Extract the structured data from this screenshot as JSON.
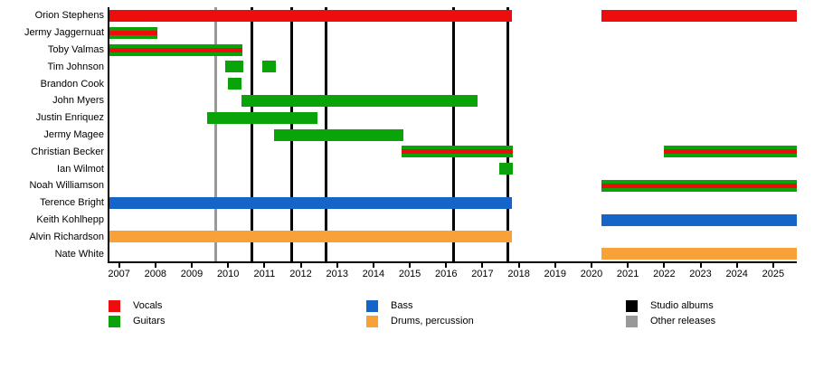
{
  "chart_data": {
    "type": "timeline",
    "x_range": [
      2006.71,
      2025.65
    ],
    "x_ticks": [
      2007,
      2008,
      2009,
      2010,
      2011,
      2012,
      2013,
      2014,
      2015,
      2016,
      2017,
      2018,
      2019,
      2020,
      2021,
      2022,
      2023,
      2024,
      2025
    ],
    "members": [
      {
        "name": "Orion Stephens",
        "role": "vocals",
        "segments": [
          [
            2006.71,
            2017.81
          ],
          [
            2020.27,
            2025.65
          ]
        ]
      },
      {
        "name": "Jermy Jaggernuat",
        "role": "guitars",
        "stripe": "vocals",
        "segments": [
          [
            2006.71,
            2008.05
          ]
        ]
      },
      {
        "name": "Toby Valmas",
        "role": "guitars",
        "stripe": "vocals",
        "segments": [
          [
            2006.71,
            2010.4
          ]
        ]
      },
      {
        "name": "Tim Johnson",
        "role": "guitars",
        "segments": [
          [
            2009.93,
            2010.42
          ],
          [
            2010.94,
            2011.31
          ]
        ]
      },
      {
        "name": "Brandon Cook",
        "role": "guitars",
        "segments": [
          [
            2009.99,
            2010.38
          ]
        ]
      },
      {
        "name": "John Myers",
        "role": "guitars",
        "segments": [
          [
            2010.36,
            2016.87
          ]
        ]
      },
      {
        "name": "Justin Enriquez",
        "role": "guitars",
        "segments": [
          [
            2009.43,
            2012.47
          ]
        ]
      },
      {
        "name": "Jermy Magee",
        "role": "guitars",
        "segments": [
          [
            2011.27,
            2014.82
          ]
        ]
      },
      {
        "name": "Christian Becker",
        "role": "guitars",
        "stripe": "vocals",
        "segments": [
          [
            2014.77,
            2017.84
          ],
          [
            2021.99,
            2025.65
          ]
        ]
      },
      {
        "name": "Ian Wilmot",
        "role": "guitars",
        "segments": [
          [
            2017.45,
            2017.84
          ]
        ]
      },
      {
        "name": "Noah Williamson",
        "role": "guitars",
        "stripe": "vocals",
        "segments": [
          [
            2020.27,
            2025.65
          ]
        ]
      },
      {
        "name": "Terence Bright",
        "role": "bass",
        "segments": [
          [
            2006.71,
            2017.81
          ]
        ]
      },
      {
        "name": "Keith Kohlhepp",
        "role": "bass",
        "segments": [
          [
            2020.27,
            2025.65
          ]
        ]
      },
      {
        "name": "Alvin Richardson",
        "role": "drums",
        "segments": [
          [
            2006.71,
            2017.81
          ]
        ]
      },
      {
        "name": "Nate White",
        "role": "drums",
        "segments": [
          [
            2020.27,
            2025.65
          ]
        ]
      }
    ],
    "releases": [
      {
        "year": 2009.65,
        "type": "other"
      },
      {
        "year": 2010.65,
        "type": "studio"
      },
      {
        "year": 2011.75,
        "type": "studio"
      },
      {
        "year": 2012.7,
        "type": "studio"
      },
      {
        "year": 2016.2,
        "type": "studio"
      },
      {
        "year": 2017.7,
        "type": "studio"
      }
    ]
  },
  "colors": {
    "vocals": "#ee0d0d",
    "guitars": "#0aa30a",
    "bass": "#1565c8",
    "drums": "#f9a139",
    "studio": "#000000",
    "other": "#999999"
  },
  "legend": {
    "items": [
      {
        "label": "Vocals",
        "color_key": "vocals"
      },
      {
        "label": "Guitars",
        "color_key": "guitars"
      },
      {
        "label": "Bass",
        "color_key": "bass"
      },
      {
        "label": "Drums, percussion",
        "color_key": "drums"
      },
      {
        "label": "Studio albums",
        "color_key": "studio"
      },
      {
        "label": "Other releases",
        "color_key": "other"
      }
    ]
  }
}
